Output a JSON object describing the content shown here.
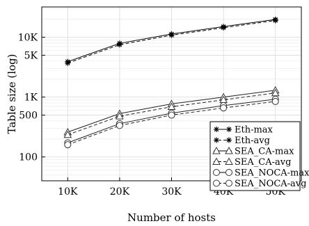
{
  "chart_data": {
    "type": "line",
    "xlabel": "Number of hosts",
    "ylabel": "Table size (log)",
    "x": [
      10000,
      20000,
      30000,
      40000,
      50000
    ],
    "x_tick_labels": [
      "10K",
      "20K",
      "30K",
      "40K",
      "50K"
    ],
    "xlim": [
      5000,
      55000
    ],
    "y_scale": "log",
    "ylim": [
      40,
      32000
    ],
    "y_ticks": [
      100,
      500,
      1000,
      5000,
      10000
    ],
    "y_tick_labels": [
      "100",
      "500",
      "1K",
      "5K",
      "10K"
    ],
    "grid": true,
    "legend_position": "bottom-right",
    "series": [
      {
        "name": "Eth-max",
        "marker": "asterisk",
        "dash": "solid",
        "values": [
          3900,
          7900,
          11300,
          15000,
          19800
        ]
      },
      {
        "name": "Eth-avg",
        "marker": "asterisk",
        "dash": "dashed",
        "values": [
          3700,
          7500,
          10800,
          14400,
          19000
        ]
      },
      {
        "name": "SEA_CA-max",
        "marker": "triangle",
        "dash": "solid",
        "values": [
          260,
          530,
          770,
          1000,
          1300
        ]
      },
      {
        "name": "SEA_CA-avg",
        "marker": "triangle",
        "dash": "dashed",
        "values": [
          235,
          480,
          690,
          900,
          1170
        ]
      },
      {
        "name": "SEA_NOCA-max",
        "marker": "circle",
        "dash": "solid",
        "values": [
          172,
          360,
          540,
          720,
          920
        ]
      },
      {
        "name": "SEA_NOCA-avg",
        "marker": "circle",
        "dash": "dashed",
        "values": [
          160,
          335,
          500,
          660,
          845
        ]
      }
    ],
    "colors": {
      "line": "#000000",
      "grid": "#d9d9d9",
      "minor_grid": "#eeeeee"
    }
  }
}
